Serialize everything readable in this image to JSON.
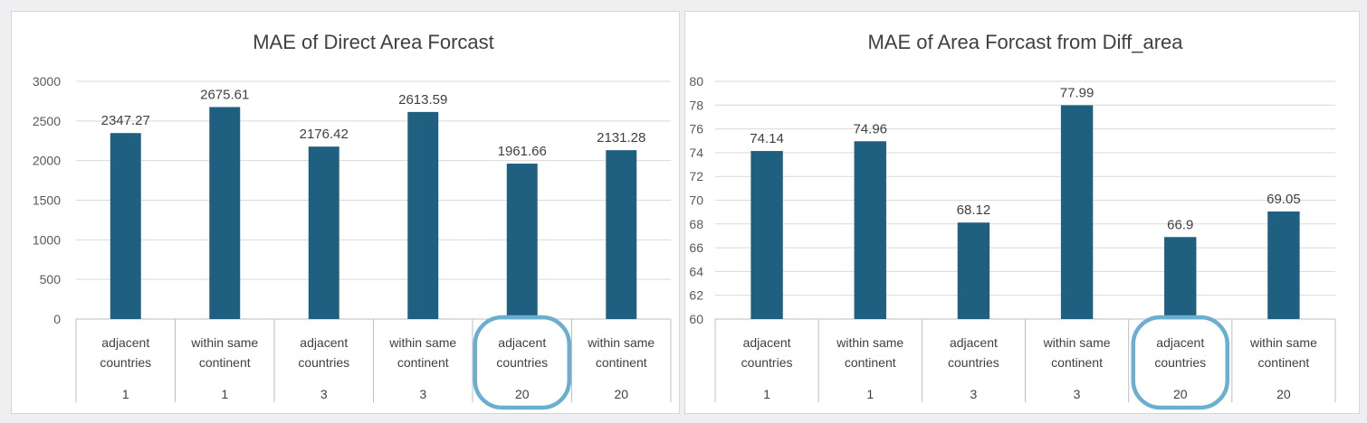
{
  "chart_data": [
    {
      "type": "bar",
      "title": "MAE of Direct Area Forcast",
      "xlabel": "",
      "ylabel": "",
      "ylim": [
        0,
        3000
      ],
      "yticks": [
        0,
        500,
        1000,
        1500,
        2000,
        2500,
        3000
      ],
      "grid": true,
      "categories": [
        {
          "line1": "adjacent",
          "line2": "countries",
          "group": "1"
        },
        {
          "line1": "within same",
          "line2": "continent",
          "group": "1"
        },
        {
          "line1": "adjacent",
          "line2": "countries",
          "group": "3"
        },
        {
          "line1": "within same",
          "line2": "continent",
          "group": "3"
        },
        {
          "line1": "adjacent",
          "line2": "countries",
          "group": "20"
        },
        {
          "line1": "within same",
          "line2": "continent",
          "group": "20"
        }
      ],
      "values": [
        2347.27,
        2675.61,
        2176.42,
        2613.59,
        1961.66,
        2131.28
      ],
      "data_labels": [
        "2347.27",
        "2675.61",
        "2176.42",
        "2613.59",
        "1961.66",
        "2131.28"
      ],
      "highlighted_category_index": 4,
      "bar_color": "#1f5f80",
      "highlight_color": "#6aaed0"
    },
    {
      "type": "bar",
      "title": "MAE of Area Forcast from Diff_area",
      "xlabel": "",
      "ylabel": "",
      "ylim": [
        60,
        80
      ],
      "yticks": [
        60,
        62,
        64,
        66,
        68,
        70,
        72,
        74,
        76,
        78,
        80
      ],
      "grid": true,
      "categories": [
        {
          "line1": "adjacent",
          "line2": "countries",
          "group": "1"
        },
        {
          "line1": "within same",
          "line2": "continent",
          "group": "1"
        },
        {
          "line1": "adjacent",
          "line2": "countries",
          "group": "3"
        },
        {
          "line1": "within same",
          "line2": "continent",
          "group": "3"
        },
        {
          "line1": "adjacent",
          "line2": "countries",
          "group": "20"
        },
        {
          "line1": "within same",
          "line2": "continent",
          "group": "20"
        }
      ],
      "values": [
        74.14,
        74.96,
        68.12,
        77.99,
        66.9,
        69.05
      ],
      "data_labels": [
        "74.14",
        "74.96",
        "68.12",
        "77.99",
        "66.9",
        "69.05"
      ],
      "highlighted_category_index": 4,
      "bar_color": "#1f5f80",
      "highlight_color": "#6aaed0"
    }
  ]
}
